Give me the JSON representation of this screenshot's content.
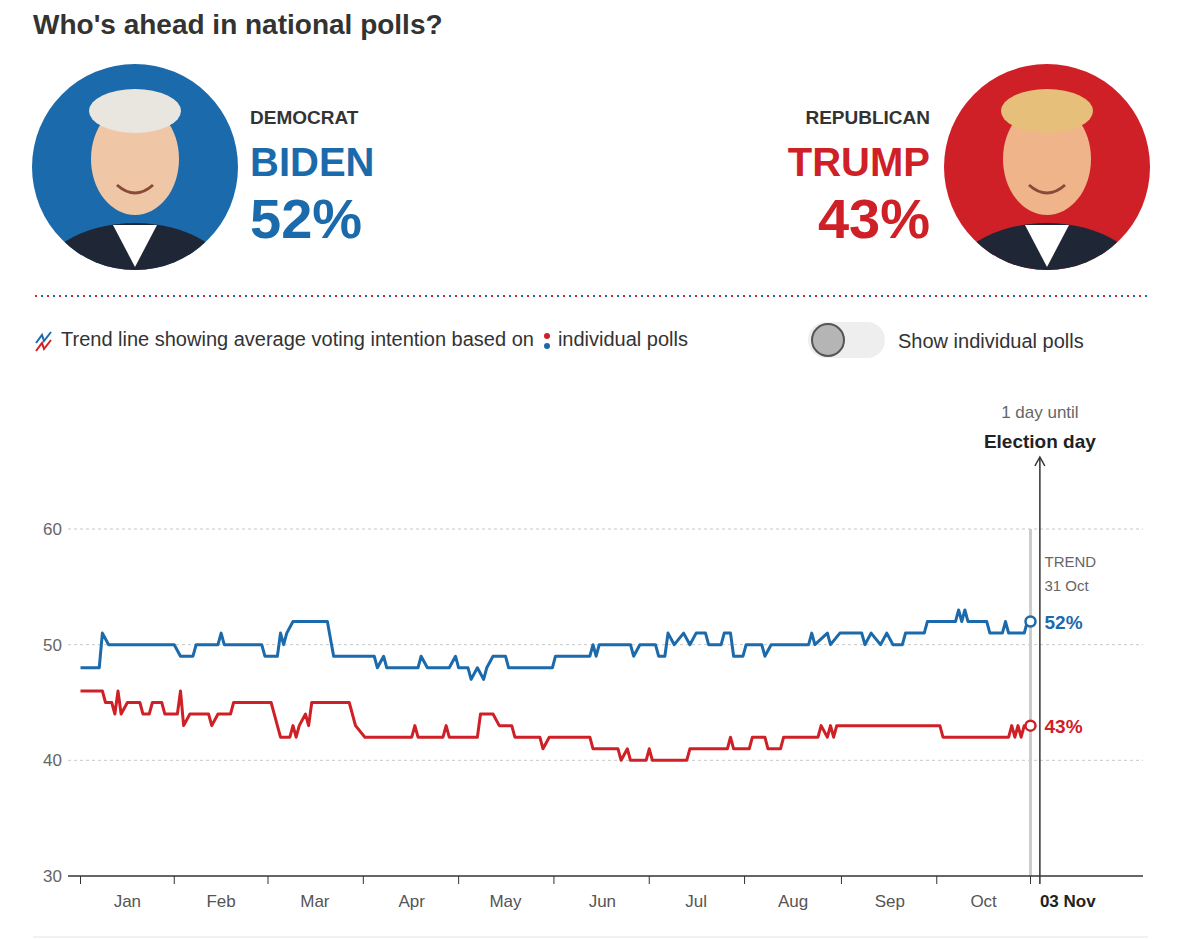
{
  "chart_data": {
    "type": "line",
    "title": "Who's ahead in national polls?",
    "key_text": "Trend line showing average voting intention based on",
    "key_text_2": "individual polls",
    "toggle_label": "Show individual polls",
    "xlim": [
      -4,
      340
    ],
    "xticks": [
      {
        "value": 15,
        "label": "Jan"
      },
      {
        "value": 45,
        "label": "Feb"
      },
      {
        "value": 75,
        "label": "Mar"
      },
      {
        "value": 106,
        "label": "Apr"
      },
      {
        "value": 136,
        "label": "May"
      },
      {
        "value": 167,
        "label": "Jun"
      },
      {
        "value": 197,
        "label": "Jul"
      },
      {
        "value": 228,
        "label": "Aug"
      },
      {
        "value": 259,
        "label": "Sep"
      },
      {
        "value": 289,
        "label": "Oct"
      }
    ],
    "ylim": [
      30,
      60
    ],
    "yticks": [
      30,
      40,
      50,
      60
    ],
    "grid": true,
    "event": {
      "x": 307,
      "label": "03 Nov",
      "title": "Election day",
      "countdown": "1 day until"
    },
    "trend": {
      "x": 304,
      "label": "31 Oct",
      "title": "TREND"
    },
    "series": [
      {
        "name": "BIDEN",
        "party": "DEMOCRAT",
        "color": "#1b6aab",
        "end_label": "52%",
        "x": [
          0,
          6,
          7,
          9,
          30,
          32,
          36,
          37,
          44,
          45,
          46,
          58,
          59,
          63,
          64,
          65,
          66,
          68,
          79,
          81,
          94,
          95,
          97,
          98,
          108,
          109,
          111,
          118,
          120,
          121,
          124,
          125,
          127,
          129,
          130,
          132,
          136,
          137,
          151,
          152,
          163,
          164,
          165,
          166,
          176,
          177,
          179,
          184,
          185,
          187,
          188,
          190,
          193,
          195,
          197,
          200,
          201,
          205,
          206,
          208,
          209,
          212,
          213,
          218,
          219,
          221,
          233,
          234,
          235,
          239,
          240,
          243,
          250,
          251,
          253,
          256,
          258,
          260,
          263,
          264,
          270,
          271,
          280,
          281,
          282,
          283,
          284,
          290,
          291,
          295,
          296,
          297,
          302,
          303,
          304
        ],
        "values": [
          48,
          48,
          51,
          50,
          50,
          49,
          49,
          50,
          50,
          51,
          50,
          50,
          49,
          49,
          51,
          50,
          51,
          52,
          52,
          49,
          49,
          48,
          49,
          48,
          48,
          49,
          48,
          48,
          49,
          48,
          48,
          47,
          48,
          47,
          48,
          49,
          49,
          48,
          48,
          49,
          49,
          50,
          49,
          50,
          50,
          49,
          50,
          50,
          49,
          49,
          51,
          50,
          51,
          50,
          51,
          51,
          50,
          50,
          51,
          51,
          49,
          49,
          50,
          50,
          49,
          50,
          50,
          51,
          50,
          51,
          50,
          51,
          51,
          50,
          51,
          50,
          51,
          50,
          50,
          51,
          51,
          52,
          52,
          53,
          52,
          53,
          52,
          52,
          51,
          51,
          52,
          51,
          51,
          52,
          52
        ]
      },
      {
        "name": "TRUMP",
        "party": "REPUBLICAN",
        "color": "#cf2027",
        "end_label": "43%",
        "x": [
          0,
          7,
          8,
          10,
          11,
          12,
          13,
          15,
          19,
          20,
          22,
          23,
          26,
          27,
          31,
          32,
          33,
          35,
          41,
          42,
          44,
          48,
          49,
          61,
          62,
          64,
          67,
          68,
          69,
          70,
          72,
          73,
          74,
          86,
          88,
          91,
          106,
          107,
          108,
          116,
          117,
          118,
          127,
          128,
          132,
          134,
          138,
          139,
          147,
          148,
          150,
          163,
          164,
          172,
          173,
          175,
          176,
          181,
          182,
          183,
          194,
          195,
          207,
          208,
          209,
          214,
          215,
          219,
          220,
          224,
          225,
          236,
          237,
          239,
          240,
          241,
          242,
          275,
          276,
          297,
          298,
          299,
          300,
          301,
          302,
          304
        ],
        "values": [
          46,
          46,
          45,
          45,
          44,
          46,
          44,
          45,
          45,
          44,
          44,
          45,
          45,
          44,
          44,
          46,
          43,
          44,
          44,
          43,
          44,
          44,
          45,
          45,
          44,
          42,
          42,
          43,
          42,
          43,
          44,
          43,
          45,
          45,
          43,
          42,
          42,
          43,
          42,
          42,
          43,
          42,
          42,
          44,
          44,
          43,
          43,
          42,
          42,
          41,
          42,
          42,
          41,
          41,
          40,
          41,
          40,
          40,
          41,
          40,
          40,
          41,
          41,
          42,
          41,
          41,
          42,
          42,
          41,
          41,
          42,
          42,
          43,
          42,
          43,
          42,
          43,
          43,
          42,
          42,
          43,
          42,
          43,
          42,
          43,
          43
        ]
      }
    ]
  }
}
